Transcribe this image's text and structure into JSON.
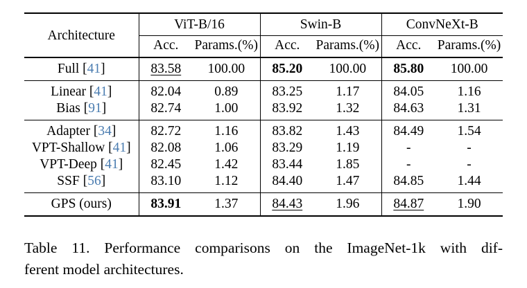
{
  "colors": {
    "citation": "#4a7cb0",
    "text": "#000000",
    "background": "#ffffff"
  },
  "table": {
    "arch_header": "Architecture",
    "groups": [
      {
        "label": "ViT-B/16"
      },
      {
        "label": "Swin-B"
      },
      {
        "label": "ConvNeXt-B"
      }
    ],
    "subheaders": {
      "acc": "Acc.",
      "params": "Params.(%)"
    },
    "rows": [
      {
        "method": "Full",
        "cite": "41",
        "group": 0,
        "values": [
          [
            "83.58",
            "u"
          ],
          [
            "100.00",
            ""
          ],
          [
            "85.20",
            "b"
          ],
          [
            "100.00",
            ""
          ],
          [
            "85.80",
            "b"
          ],
          [
            "100.00",
            ""
          ]
        ]
      },
      {
        "method": "Linear",
        "cite": "41",
        "group": 1,
        "values": [
          [
            "82.04",
            ""
          ],
          [
            "0.89",
            ""
          ],
          [
            "83.25",
            ""
          ],
          [
            "1.17",
            ""
          ],
          [
            "84.05",
            ""
          ],
          [
            "1.16",
            ""
          ]
        ]
      },
      {
        "method": "Bias",
        "cite": "91",
        "group": 1,
        "values": [
          [
            "82.74",
            ""
          ],
          [
            "1.00",
            ""
          ],
          [
            "83.92",
            ""
          ],
          [
            "1.32",
            ""
          ],
          [
            "84.63",
            ""
          ],
          [
            "1.31",
            ""
          ]
        ]
      },
      {
        "method": "Adapter",
        "cite": "34",
        "group": 2,
        "values": [
          [
            "82.72",
            ""
          ],
          [
            "1.16",
            ""
          ],
          [
            "83.82",
            ""
          ],
          [
            "1.43",
            ""
          ],
          [
            "84.49",
            ""
          ],
          [
            "1.54",
            ""
          ]
        ]
      },
      {
        "method": "VPT-Shallow",
        "cite": "41",
        "group": 2,
        "values": [
          [
            "82.08",
            ""
          ],
          [
            "1.06",
            ""
          ],
          [
            "83.29",
            ""
          ],
          [
            "1.19",
            ""
          ],
          [
            "-",
            ""
          ],
          [
            "-",
            ""
          ]
        ]
      },
      {
        "method": "VPT-Deep",
        "cite": "41",
        "group": 2,
        "values": [
          [
            "82.45",
            ""
          ],
          [
            "1.42",
            ""
          ],
          [
            "83.44",
            ""
          ],
          [
            "1.85",
            ""
          ],
          [
            "-",
            ""
          ],
          [
            "-",
            ""
          ]
        ]
      },
      {
        "method": "SSF",
        "cite": "56",
        "group": 2,
        "values": [
          [
            "83.10",
            ""
          ],
          [
            "1.12",
            ""
          ],
          [
            "84.40",
            ""
          ],
          [
            "1.47",
            ""
          ],
          [
            "84.85",
            ""
          ],
          [
            "1.44",
            ""
          ]
        ]
      },
      {
        "method": "GPS (ours)",
        "cite": null,
        "group": 3,
        "values": [
          [
            "83.91",
            "b"
          ],
          [
            "1.37",
            ""
          ],
          [
            "84.43",
            "u"
          ],
          [
            "1.96",
            ""
          ],
          [
            "84.87",
            "u"
          ],
          [
            "1.90",
            ""
          ]
        ]
      }
    ]
  },
  "caption": {
    "line1": "Table 11. Performance comparisons on the ImageNet-1k with dif-",
    "line2": "ferent model architectures."
  }
}
